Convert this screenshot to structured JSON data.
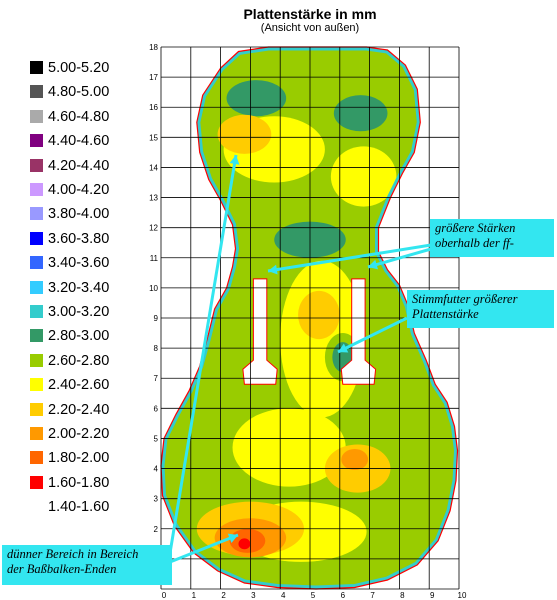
{
  "chart_data": {
    "type": "heatmap",
    "title": "Plattenstärke in mm",
    "subtitle": "(Ansicht von außen)",
    "xlim": [
      0,
      10
    ],
    "ylim": [
      0,
      18
    ],
    "x_ticks": [
      "0",
      "1",
      "2",
      "3",
      "4",
      "5",
      "6",
      "7",
      "8",
      "9",
      "10"
    ],
    "y_ticks": [
      "1",
      "2",
      "3",
      "4",
      "5",
      "6",
      "7",
      "8",
      "9",
      "10",
      "11",
      "12",
      "13",
      "14",
      "15",
      "16",
      "17",
      "18"
    ],
    "grid": true,
    "legend": {
      "placement": "left",
      "entries": [
        {
          "label": "5.00-5.20",
          "color": "#000000"
        },
        {
          "label": "4.80-5.00",
          "color": "#555555"
        },
        {
          "label": "4.60-4.80",
          "color": "#aaaaaa"
        },
        {
          "label": "4.40-4.60",
          "color": "#800080"
        },
        {
          "label": "4.20-4.40",
          "color": "#993366"
        },
        {
          "label": "4.00-4.20",
          "color": "#cc99ff"
        },
        {
          "label": "3.80-4.00",
          "color": "#9999ff"
        },
        {
          "label": "3.60-3.80",
          "color": "#0000ff"
        },
        {
          "label": "3.40-3.60",
          "color": "#3366ff"
        },
        {
          "label": "3.20-3.40",
          "color": "#33ccff"
        },
        {
          "label": "3.00-3.20",
          "color": "#33cccc"
        },
        {
          "label": "2.80-3.00",
          "color": "#339966"
        },
        {
          "label": "2.60-2.80",
          "color": "#99cc00"
        },
        {
          "label": "2.40-2.60",
          "color": "#ffff00"
        },
        {
          "label": "2.20-2.40",
          "color": "#ffcc00"
        },
        {
          "label": "2.00-2.20",
          "color": "#ff9900"
        },
        {
          "label": "1.80-2.00",
          "color": "#ff6600"
        },
        {
          "label": "1.60-1.80",
          "color": "#ff0000"
        },
        {
          "label": "1.40-1.60",
          "color": "#ffffff"
        }
      ]
    },
    "regions": [
      {
        "level": "2.60-2.80",
        "x": 5.3,
        "y": 16.9,
        "rx": 3.3,
        "ry": 1.2
      },
      {
        "level": "2.80-3.00",
        "x": 3.2,
        "y": 16.3,
        "rx": 1.0,
        "ry": 0.6
      },
      {
        "level": "2.80-3.00",
        "x": 6.7,
        "y": 15.8,
        "rx": 0.9,
        "ry": 0.6
      },
      {
        "level": "2.40-2.60",
        "x": 3.8,
        "y": 14.6,
        "rx": 1.7,
        "ry": 1.1
      },
      {
        "level": "2.20-2.40",
        "x": 2.8,
        "y": 15.1,
        "rx": 0.9,
        "ry": 0.65
      },
      {
        "level": "2.40-2.60",
        "x": 6.8,
        "y": 13.7,
        "rx": 1.1,
        "ry": 1.0
      },
      {
        "level": "2.80-3.00",
        "x": 5.0,
        "y": 11.6,
        "rx": 1.2,
        "ry": 0.6
      },
      {
        "level": "2.40-2.60",
        "x": 5.4,
        "y": 8.3,
        "rx": 1.4,
        "ry": 2.6
      },
      {
        "level": "2.20-2.40",
        "x": 5.3,
        "y": 9.1,
        "rx": 0.7,
        "ry": 0.8
      },
      {
        "level": "2.60-2.80",
        "x": 6.1,
        "y": 7.7,
        "rx": 0.6,
        "ry": 0.8
      },
      {
        "level": "2.80-3.00",
        "x": 6.1,
        "y": 7.7,
        "rx": 0.35,
        "ry": 0.5
      },
      {
        "level": "2.60-2.80",
        "x": 1.6,
        "y": 4.5,
        "rx": 0.8,
        "ry": 1.0
      },
      {
        "level": "2.60-2.80",
        "x": 8.9,
        "y": 4.3,
        "rx": 0.8,
        "ry": 1.1
      },
      {
        "level": "2.40-2.60",
        "x": 4.3,
        "y": 4.7,
        "rx": 1.9,
        "ry": 1.3
      },
      {
        "level": "2.40-2.60",
        "x": 4.7,
        "y": 1.9,
        "rx": 2.2,
        "ry": 1.0
      },
      {
        "level": "2.20-2.40",
        "x": 6.6,
        "y": 4.0,
        "rx": 1.1,
        "ry": 0.8
      },
      {
        "level": "2.00-2.20",
        "x": 6.5,
        "y": 4.3,
        "rx": 0.45,
        "ry": 0.35
      },
      {
        "level": "2.20-2.40",
        "x": 3.0,
        "y": 2.0,
        "rx": 1.8,
        "ry": 0.9
      },
      {
        "level": "2.00-2.20",
        "x": 3.0,
        "y": 1.7,
        "rx": 1.2,
        "ry": 0.65
      },
      {
        "level": "1.80-2.00",
        "x": 2.9,
        "y": 1.6,
        "rx": 0.6,
        "ry": 0.4
      },
      {
        "level": "1.60-1.80",
        "x": 2.8,
        "y": 1.5,
        "rx": 0.2,
        "ry": 0.18
      }
    ],
    "annotations": [
      {
        "lines": [
          "größere Stärken",
          "oberhalb der ff-"
        ]
      },
      {
        "lines": [
          "Stimmfutter größerer",
          "Plattenstärke"
        ]
      },
      {
        "lines": [
          "dünner Bereich in Bereich",
          "der Baßbalken-Enden"
        ]
      }
    ]
  }
}
